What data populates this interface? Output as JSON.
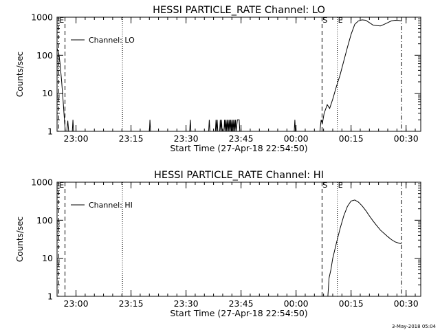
{
  "footer": {
    "timestamp": "3-May-2018 05:04"
  },
  "chart_data": [
    {
      "type": "line",
      "title": "HESSI PARTICLE_RATE Channel: LO",
      "xlabel": "Start Time (27-Apr-18 22:54:50)",
      "ylabel": "Counts/sec",
      "yscale": "log",
      "ylim": [
        1,
        1000
      ],
      "xlim": [
        "22:54:50",
        "00:34:00"
      ],
      "x_ticks": [
        "23:00",
        "23:15",
        "23:30",
        "23:45",
        "00:00",
        "00:15",
        "00:30"
      ],
      "y_ticks": [
        "1",
        "10",
        "100",
        "1000"
      ],
      "legend": {
        "label": "Channel: LO",
        "position": "top-left"
      },
      "markers": [
        {
          "time": "22:55:15",
          "style": "dash-dot",
          "label": "E"
        },
        {
          "time": "22:57:00",
          "style": "dashed",
          "label": ""
        },
        {
          "time": "23:12:40",
          "style": "dotted",
          "label": ""
        },
        {
          "time": "00:07:05",
          "style": "dashed",
          "label": "S"
        },
        {
          "time": "00:11:15",
          "style": "dotted",
          "label": "E"
        },
        {
          "time": "00:28:45",
          "style": "dash-dot",
          "label": ""
        }
      ],
      "series": [
        {
          "name": "Channel: LO",
          "points": [
            [
              "22:54:50",
              150
            ],
            [
              "22:55:15",
              120
            ],
            [
              "22:55:40",
              60
            ],
            [
              "22:56:05",
              20
            ],
            [
              "22:56:30",
              6
            ],
            [
              "22:56:50",
              2
            ],
            [
              "22:57:05",
              1
            ],
            [
              "22:57:30",
              1
            ],
            [
              "22:57:45",
              1.9
            ],
            [
              "22:58:00",
              1
            ],
            [
              "22:59:00",
              1
            ],
            [
              "22:59:10",
              2
            ],
            [
              "22:59:20",
              1
            ],
            [
              "23:20:00",
              1
            ],
            [
              "23:20:10",
              2
            ],
            [
              "23:20:20",
              1
            ],
            [
              "23:31:00",
              1
            ],
            [
              "23:31:10",
              2
            ],
            [
              "23:31:20",
              1
            ],
            [
              "23:36:10",
              1
            ],
            [
              "23:36:20",
              2
            ],
            [
              "23:36:30",
              1
            ],
            [
              "23:38:00",
              1
            ],
            [
              "23:38:10",
              2
            ],
            [
              "23:38:20",
              1
            ],
            [
              "23:38:30",
              2
            ],
            [
              "23:38:40",
              1
            ],
            [
              "23:39:10",
              1
            ],
            [
              "23:39:20",
              2
            ],
            [
              "23:39:30",
              1
            ],
            [
              "23:39:40",
              2
            ],
            [
              "23:39:50",
              1
            ],
            [
              "23:40:20",
              1
            ],
            [
              "23:40:30",
              2
            ],
            [
              "23:40:40",
              1
            ],
            [
              "23:40:50",
              2
            ],
            [
              "23:41:00",
              1
            ],
            [
              "23:41:10",
              2
            ],
            [
              "23:41:20",
              1
            ],
            [
              "23:41:30",
              2
            ],
            [
              "23:41:40",
              1
            ],
            [
              "23:41:50",
              2
            ],
            [
              "23:42:00",
              1
            ],
            [
              "23:42:10",
              2
            ],
            [
              "23:42:20",
              1
            ],
            [
              "23:42:30",
              2
            ],
            [
              "23:42:40",
              1
            ],
            [
              "23:42:50",
              2
            ],
            [
              "23:43:00",
              1
            ],
            [
              "23:43:10",
              2
            ],
            [
              "23:43:20",
              1
            ],
            [
              "23:43:30",
              2
            ],
            [
              "23:43:40",
              1
            ],
            [
              "23:44:00",
              2
            ],
            [
              "23:44:30",
              2
            ],
            [
              "23:44:40",
              1
            ],
            [
              "23:59:30",
              1
            ],
            [
              "23:59:40",
              2
            ],
            [
              "23:59:50",
              1
            ],
            [
              "00:06:30",
              1
            ],
            [
              "00:06:50",
              2
            ],
            [
              "00:07:10",
              1.6
            ],
            [
              "00:07:40",
              3
            ],
            [
              "00:08:30",
              5
            ],
            [
              "00:09:10",
              4
            ],
            [
              "00:10:00",
              7
            ],
            [
              "00:11:00",
              15
            ],
            [
              "00:12:00",
              30
            ],
            [
              "00:13:00",
              70
            ],
            [
              "00:14:00",
              160
            ],
            [
              "00:15:00",
              350
            ],
            [
              "00:16:00",
              650
            ],
            [
              "00:17:00",
              800
            ],
            [
              "00:18:00",
              850
            ],
            [
              "00:19:00",
              830
            ],
            [
              "00:20:00",
              720
            ],
            [
              "00:21:00",
              620
            ],
            [
              "00:22:00",
              600
            ],
            [
              "00:23:00",
              590
            ],
            [
              "00:24:00",
              650
            ],
            [
              "00:25:00",
              720
            ],
            [
              "00:26:00",
              800
            ],
            [
              "00:27:00",
              830
            ],
            [
              "00:28:00",
              820
            ],
            [
              "00:28:45",
              800
            ]
          ]
        }
      ]
    },
    {
      "type": "line",
      "title": "HESSI PARTICLE_RATE Channel: HI",
      "xlabel": "Start Time (27-Apr-18 22:54:50)",
      "ylabel": "Counts/sec",
      "yscale": "log",
      "ylim": [
        1,
        1000
      ],
      "xlim": [
        "22:54:50",
        "00:34:00"
      ],
      "x_ticks": [
        "23:00",
        "23:15",
        "23:30",
        "23:45",
        "00:00",
        "00:15",
        "00:30"
      ],
      "y_ticks": [
        "1",
        "10",
        "100",
        "1000"
      ],
      "legend": {
        "label": "Channel: HI",
        "position": "top-left"
      },
      "markers": [
        {
          "time": "22:55:15",
          "style": "dash-dot",
          "label": "E"
        },
        {
          "time": "22:57:00",
          "style": "dashed",
          "label": ""
        },
        {
          "time": "23:12:40",
          "style": "dotted",
          "label": ""
        },
        {
          "time": "00:07:05",
          "style": "dashed",
          "label": "S"
        },
        {
          "time": "00:11:15",
          "style": "dotted",
          "label": "E"
        },
        {
          "time": "00:28:45",
          "style": "dash-dot",
          "label": ""
        }
      ],
      "series": [
        {
          "name": "Channel: HI",
          "points": [
            [
              "00:08:40",
              1
            ],
            [
              "00:09:00",
              3
            ],
            [
              "00:09:30",
              5
            ],
            [
              "00:10:00",
              10
            ],
            [
              "00:11:00",
              25
            ],
            [
              "00:12:00",
              60
            ],
            [
              "00:13:00",
              130
            ],
            [
              "00:14:00",
              230
            ],
            [
              "00:15:00",
              320
            ],
            [
              "00:16:00",
              340
            ],
            [
              "00:17:00",
              300
            ],
            [
              "00:18:00",
              240
            ],
            [
              "00:19:00",
              180
            ],
            [
              "00:20:00",
              130
            ],
            [
              "00:21:00",
              95
            ],
            [
              "00:22:00",
              72
            ],
            [
              "00:23:00",
              55
            ],
            [
              "00:24:00",
              45
            ],
            [
              "00:25:00",
              37
            ],
            [
              "00:26:00",
              31
            ],
            [
              "00:27:00",
              27
            ],
            [
              "00:28:00",
              25
            ],
            [
              "00:28:45",
              24
            ]
          ]
        }
      ]
    }
  ]
}
